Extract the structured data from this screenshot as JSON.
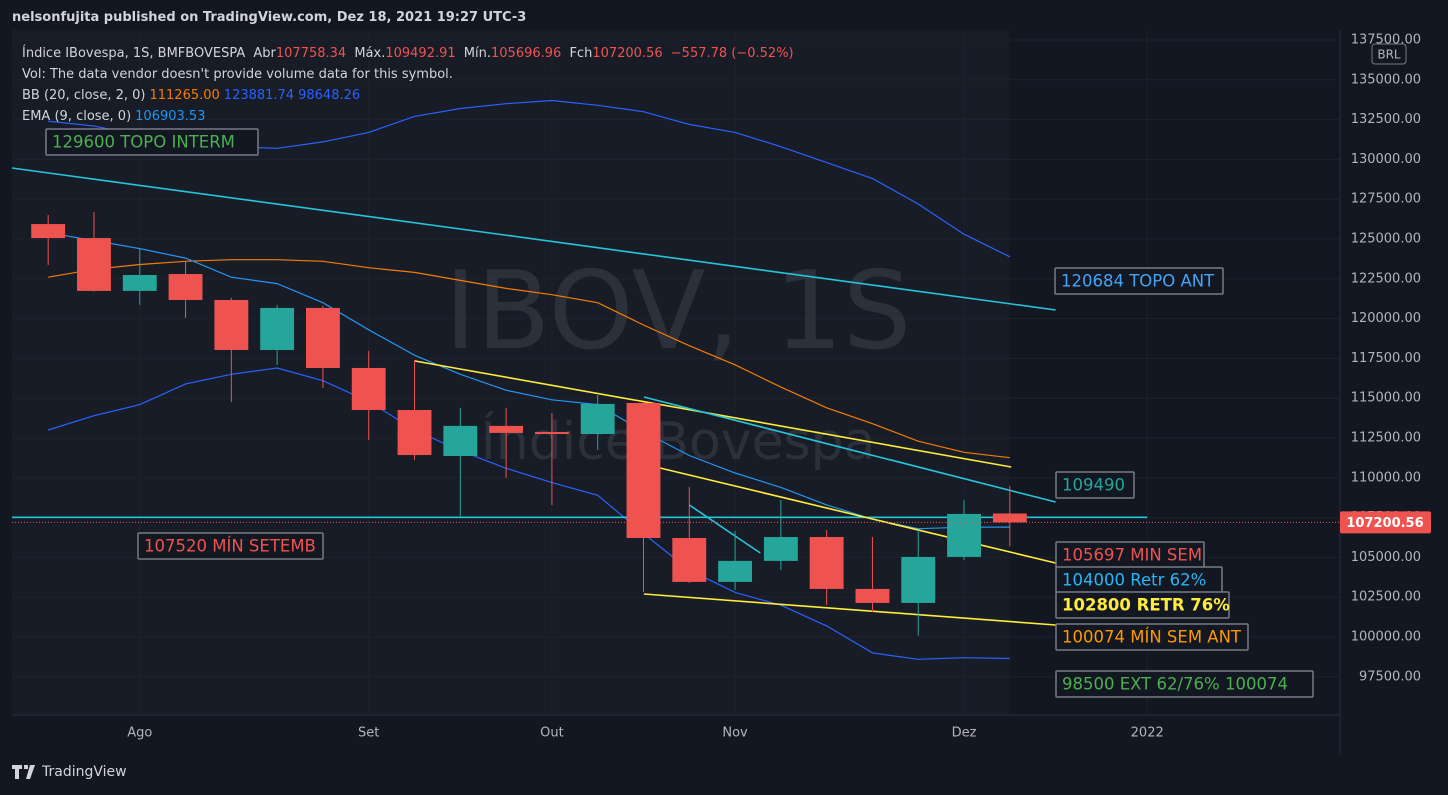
{
  "header": {
    "published": "nelsonfujita published on TradingView.com, Dez 18, 2021 19:27 UTC-3"
  },
  "footer": {
    "brand": "TradingView"
  },
  "chart_data": {
    "type": "candlestick",
    "currency": "BRL",
    "watermark": {
      "title": "IBOV, 1S",
      "subtitle": "Índice Bovespa"
    },
    "legend_header": {
      "symbol": "Índice IBovespa, 1S, BMFBOVESPA",
      "open_label": "Abr",
      "high_label": "Máx.",
      "low_label": "Mín.",
      "close_label": "Fch",
      "change": "−557.78 (−0.52%)",
      "volume_note": "Vol: The data vendor doesn't provide volume data for this symbol."
    },
    "indicators": [
      {
        "name": "BB (20, close, 2, 0)",
        "value_labels": [
          "111265.00",
          "123881.74",
          "98648.26"
        ],
        "colors": [
          "#f57c00",
          "#2962ff",
          "#2962ff"
        ]
      },
      {
        "name": "EMA (9, close, 0)",
        "value_labels": [
          "106903.53"
        ],
        "colors": [
          "#2196f3"
        ]
      }
    ],
    "up_color": "#26a69a",
    "down_color": "#ef5350",
    "candles": [
      {
        "open": 125940,
        "high": 126510,
        "low": 123370,
        "close": 125060
      },
      {
        "open": 125060,
        "high": 126700,
        "low": 121700,
        "close": 121740
      },
      {
        "open": 121740,
        "high": 124440,
        "low": 120860,
        "close": 122740
      },
      {
        "open": 122800,
        "high": 123560,
        "low": 120040,
        "close": 121170
      },
      {
        "open": 121170,
        "high": 121300,
        "low": 114760,
        "close": 118030
      },
      {
        "open": 118030,
        "high": 120860,
        "low": 117090,
        "close": 120670
      },
      {
        "open": 120670,
        "high": 120800,
        "low": 115640,
        "close": 116900
      },
      {
        "open": 116900,
        "high": 117970,
        "low": 112380,
        "close": 114260
      },
      {
        "open": 114260,
        "high": 117400,
        "low": 111120,
        "close": 111430
      },
      {
        "open": 111370,
        "high": 114390,
        "low": 107600,
        "close": 113260
      },
      {
        "open": 113260,
        "high": 114390,
        "low": 109990,
        "close": 112820
      },
      {
        "open": 112880,
        "high": 114070,
        "low": 108290,
        "close": 112750
      },
      {
        "open": 112750,
        "high": 115200,
        "low": 111750,
        "close": 114640
      },
      {
        "open": 114700,
        "high": 114750,
        "low": 102830,
        "close": 106220
      },
      {
        "open": 106220,
        "high": 109420,
        "low": 103400,
        "close": 103460
      },
      {
        "open": 103460,
        "high": 106660,
        "low": 102950,
        "close": 104780
      },
      {
        "open": 104780,
        "high": 108610,
        "low": 104210,
        "close": 106280
      },
      {
        "open": 106280,
        "high": 106720,
        "low": 102010,
        "close": 103020
      },
      {
        "open": 103020,
        "high": 106280,
        "low": 101570,
        "close": 102140
      },
      {
        "open": 102140,
        "high": 106720,
        "low": 100074,
        "close": 105030
      },
      {
        "open": 105030,
        "high": 108610,
        "low": 104840,
        "close": 107730
      },
      {
        "open": 107758.34,
        "high": 109492.91,
        "low": 105696.96,
        "close": 107200.56
      }
    ],
    "series": [
      {
        "color": "#f57c00",
        "values": [
          122600,
          123100,
          123400,
          123600,
          123700,
          123700,
          123600,
          123200,
          122900,
          122400,
          121900,
          121500,
          121000,
          119600,
          118300,
          117100,
          115700,
          114400,
          113400,
          112300,
          111600,
          111265
        ]
      },
      {
        "color": "#2962ff",
        "values": [
          132400,
          132100,
          131500,
          131000,
          130800,
          130700,
          131100,
          131700,
          132700,
          133200,
          133500,
          133700,
          133400,
          133000,
          132200,
          131700,
          130800,
          129800,
          128800,
          127200,
          125300,
          123881.74
        ]
      },
      {
        "color": "#2962ff",
        "values": [
          113000,
          113900,
          114600,
          115900,
          116500,
          116900,
          116100,
          114800,
          113000,
          111700,
          110600,
          109700,
          108900,
          106500,
          104200,
          102800,
          102000,
          100700,
          99000,
          98600,
          98700,
          98648.26
        ]
      },
      {
        "color": "#2196f3",
        "values": [
          125400,
          124900,
          124400,
          123800,
          122600,
          122200,
          121000,
          119300,
          117700,
          116500,
          115500,
          114900,
          114600,
          112900,
          111400,
          110300,
          109400,
          108300,
          107400,
          106800,
          106900,
          106903.53
        ]
      }
    ],
    "trendlines": [
      {
        "color": "#26c6da",
        "x": [
          -0.79,
          22.0
        ],
        "values": [
          129460,
          120541
        ]
      },
      {
        "color": "#26c6da",
        "x": [
          -0.79,
          24.0
        ],
        "values": [
          107520,
          107520
        ]
      },
      {
        "color": "#ffeb3b",
        "x": [
          8.01,
          21.03
        ],
        "values": [
          117338,
          110680
        ]
      },
      {
        "color": "#26c6da",
        "x": [
          13.01,
          22.0
        ],
        "values": [
          115077,
          108482
        ]
      },
      {
        "color": "#ffeb3b",
        "x": [
          13.36,
          22.0
        ],
        "values": [
          110617,
          104650
        ]
      },
      {
        "color": "#ffeb3b",
        "x": [
          13.01,
          22.0
        ],
        "values": [
          102703,
          100756
        ]
      },
      {
        "color": "#26c6da",
        "x": [
          14.0,
          15.55
        ],
        "values": [
          108293,
          105279
        ]
      }
    ],
    "annotations": [
      {
        "text": "129600 TOPO INTERM",
        "color": "#4caf50"
      },
      {
        "text": "107520 MÍN SETEMB",
        "color": "#ef5350"
      },
      {
        "text": "120684 TOPO ANT",
        "color": "#42a5f5"
      },
      {
        "text": "109490",
        "color": "#26a69a"
      },
      {
        "text": "105697 MIN SEM",
        "color": "#ef5350"
      },
      {
        "text": "104000 Retr 62%",
        "color": "#29b6f6"
      },
      {
        "text": "102800 RETR 76%",
        "color": "#ffeb3b"
      },
      {
        "text": "100074 MÍN SEM ANT",
        "color": "#ff9800"
      },
      {
        "text": "98500 EXT 62/76% 100074",
        "color": "#4caf50"
      }
    ],
    "xlim": [
      -0.79,
      28.21
    ],
    "xticks": [
      {
        "value": 2,
        "label": "Ago"
      },
      {
        "value": 7,
        "label": "Set"
      },
      {
        "value": 11,
        "label": "Out"
      },
      {
        "value": 15,
        "label": "Nov"
      },
      {
        "value": 20,
        "label": "Dez"
      },
      {
        "value": 24,
        "label": "2022"
      }
    ],
    "ylim": [
      95100,
      138130
    ],
    "yticks": [
      {
        "value": 97500,
        "label": "97500.00"
      },
      {
        "value": 100000,
        "label": "100000.00"
      },
      {
        "value": 102500,
        "label": "102500.00"
      },
      {
        "value": 105000,
        "label": "105000.00"
      },
      {
        "value": 107500,
        "label": "107500.00"
      },
      {
        "value": 110000,
        "label": "110000.00"
      },
      {
        "value": 112500,
        "label": "112500.00"
      },
      {
        "value": 115000,
        "label": "115000.00"
      },
      {
        "value": 117500,
        "label": "117500.00"
      },
      {
        "value": 120000,
        "label": "120000.00"
      },
      {
        "value": 122500,
        "label": "122500.00"
      },
      {
        "value": 125000,
        "label": "125000.00"
      },
      {
        "value": 127500,
        "label": "127500.00"
      },
      {
        "value": 130000,
        "label": "130000.00"
      },
      {
        "value": 132500,
        "label": "132500.00"
      },
      {
        "value": 135000,
        "label": "135000.00"
      },
      {
        "value": 137500,
        "label": "137500.00"
      }
    ],
    "grid": true
  }
}
